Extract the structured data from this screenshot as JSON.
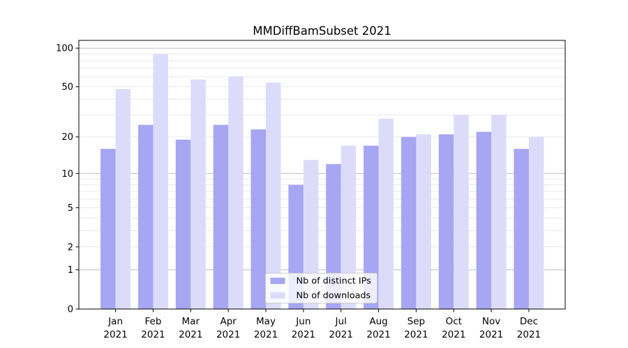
{
  "chart_data": {
    "type": "bar",
    "title": "MMDiffBamSubset 2021",
    "categories": [
      "Jan",
      "Feb",
      "Mar",
      "Apr",
      "May",
      "Jun",
      "Jul",
      "Aug",
      "Sep",
      "Oct",
      "Nov",
      "Dec"
    ],
    "category_year": "2021",
    "series": [
      {
        "name": "Nb of distinct IPs",
        "color": "#a6a6f3",
        "values": [
          16,
          25,
          19,
          25,
          23,
          8,
          12,
          17,
          20,
          21,
          22,
          16
        ]
      },
      {
        "name": "Nb of downloads",
        "color": "#dcdcfa",
        "values": [
          48,
          90,
          57,
          60,
          54,
          13,
          17,
          28,
          21,
          30,
          30,
          20
        ]
      }
    ],
    "y_scale": "log10(1+v)",
    "ylim": [
      0,
      114
    ],
    "y_ticks": [
      0,
      1,
      2,
      5,
      10,
      20,
      50,
      100
    ],
    "y_major_gridlines": [
      1,
      10,
      100
    ],
    "y_minor_gridlines": [
      2,
      3,
      4,
      5,
      6,
      7,
      8,
      9,
      20,
      30,
      40,
      50,
      60,
      70,
      80,
      90
    ],
    "grid": true,
    "legend_position": "lower center",
    "colors": {
      "major_grid": "#bdbdbd",
      "minor_grid": "#e9e9e9",
      "spine": "#000000",
      "legend_border": "#cccccc",
      "legend_bg": "rgba(255,255,255,0.8)",
      "text": "#000000"
    }
  }
}
